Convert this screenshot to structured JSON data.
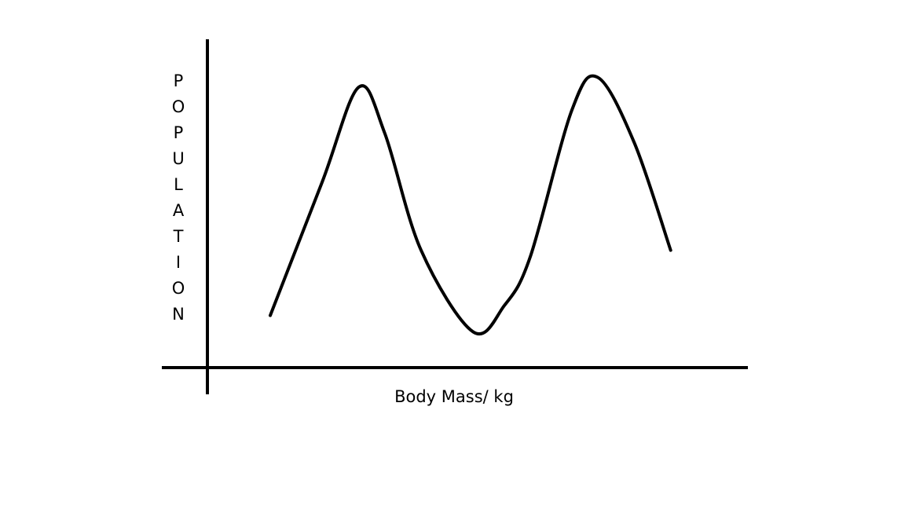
{
  "chart_data": {
    "type": "line",
    "title": "",
    "xlabel": "Body Mass/ kg",
    "ylabel": "POPULATION",
    "ylabel_letters": [
      "P",
      "O",
      "P",
      "U",
      "L",
      "A",
      "T",
      "I",
      "O",
      "N"
    ],
    "grid": false,
    "xticks": [],
    "yticks": [],
    "series": [
      {
        "values": [
          {
            "x": 0.0,
            "y": 0.16
          },
          {
            "x": 0.1,
            "y": 0.57
          },
          {
            "x": 0.17,
            "y": 0.86
          },
          {
            "x": 0.22,
            "y": 0.72
          },
          {
            "x": 0.29,
            "y": 0.36
          },
          {
            "x": 0.39,
            "y": 0.11
          },
          {
            "x": 0.45,
            "y": 0.19
          },
          {
            "x": 0.5,
            "y": 0.34
          },
          {
            "x": 0.58,
            "y": 0.79
          },
          {
            "x": 0.63,
            "y": 0.89
          },
          {
            "x": 0.7,
            "y": 0.69
          },
          {
            "x": 0.77,
            "y": 0.36
          }
        ]
      }
    ]
  }
}
